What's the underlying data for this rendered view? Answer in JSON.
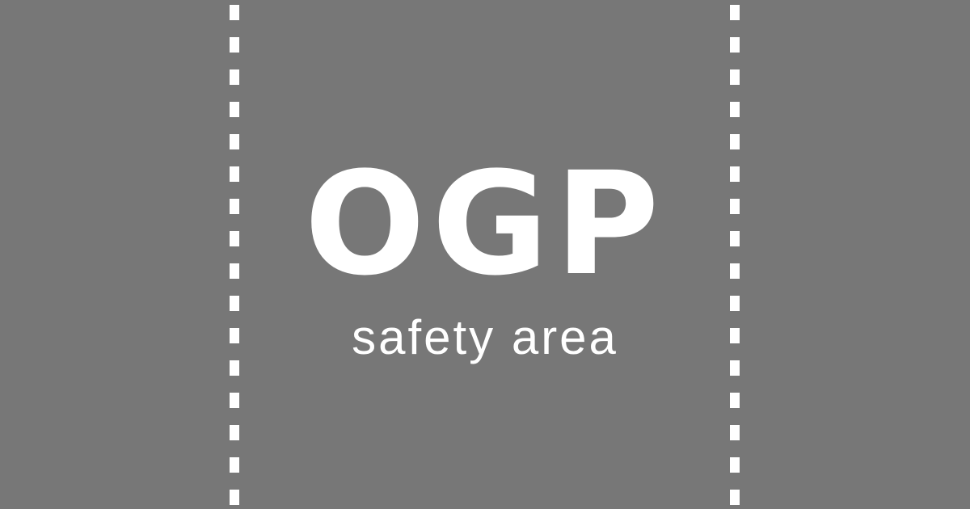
{
  "colors": {
    "background": "#777777",
    "foreground": "#ffffff"
  },
  "title": "OGP",
  "subtitle": "safety area"
}
